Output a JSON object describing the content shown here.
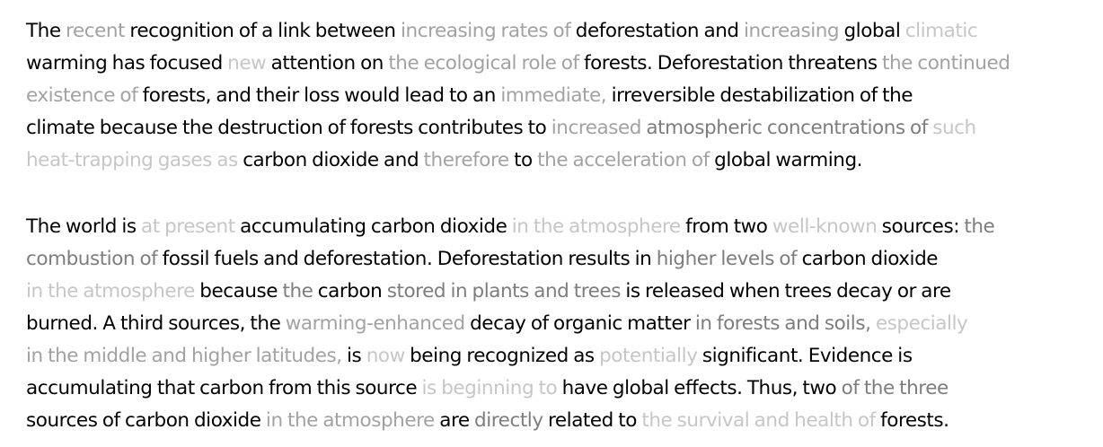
{
  "document": {
    "paragraphs": [
      {
        "lines": [
          [
            {
              "t": "The ",
              "w": 0
            },
            {
              "t": "recent ",
              "w": 2
            },
            {
              "t": "recognition of a link between ",
              "w": 0
            },
            {
              "t": "increasing rates of ",
              "w": 2
            },
            {
              "t": "deforestation and ",
              "w": 0
            },
            {
              "t": "increasing ",
              "w": 2
            },
            {
              "t": "global ",
              "w": 0
            },
            {
              "t": "climatic",
              "w": 3
            }
          ],
          [
            {
              "t": "warming has focused ",
              "w": 0
            },
            {
              "t": "new ",
              "w": 3
            },
            {
              "t": "attention on ",
              "w": 0
            },
            {
              "t": "the ecological role of ",
              "w": 2
            },
            {
              "t": "forests. Deforestation threatens ",
              "w": 0
            },
            {
              "t": "the continued",
              "w": 2
            }
          ],
          [
            {
              "t": "existence of ",
              "w": 2
            },
            {
              "t": "forests, and their loss would lead to an ",
              "w": 0
            },
            {
              "t": "immediate, ",
              "w": 2
            },
            {
              "t": "irreversible destabilization of the",
              "w": 0
            }
          ],
          [
            {
              "t": "climate because the destruction of forests contributes to ",
              "w": 0
            },
            {
              "t": "increased ",
              "w": 2
            },
            {
              "t": "atmospheric concentrations of ",
              "w": 1
            },
            {
              "t": "such",
              "w": 3
            }
          ],
          [
            {
              "t": "heat-trapping gases as ",
              "w": 3
            },
            {
              "t": "carbon dioxide and ",
              "w": 0
            },
            {
              "t": "therefore ",
              "w": 2
            },
            {
              "t": "to ",
              "w": 0
            },
            {
              "t": "the acceleration of ",
              "w": 2
            },
            {
              "t": "global warming.",
              "w": 0
            }
          ]
        ]
      },
      {
        "lines": [
          [
            {
              "t": "The world is ",
              "w": 0
            },
            {
              "t": "at present ",
              "w": 3
            },
            {
              "t": "accumulating carbon dioxide ",
              "w": 0
            },
            {
              "t": "in the atmosphere ",
              "w": 3
            },
            {
              "t": "from two ",
              "w": 0
            },
            {
              "t": "well-known ",
              "w": 3
            },
            {
              "t": "sources: ",
              "w": 0
            },
            {
              "t": "the",
              "w": 1
            }
          ],
          [
            {
              "t": "combustion of ",
              "w": 1
            },
            {
              "t": "fossil fuels and deforestation. Deforestation results in ",
              "w": 0
            },
            {
              "t": "higher levels of ",
              "w": 1
            },
            {
              "t": "carbon dioxide",
              "w": 0
            }
          ],
          [
            {
              "t": "in the atmosphere ",
              "w": 3
            },
            {
              "t": "because ",
              "w": 0
            },
            {
              "t": "the ",
              "w": 1
            },
            {
              "t": "carbon ",
              "w": 0
            },
            {
              "t": "stored in plants and trees ",
              "w": 1
            },
            {
              "t": "is released when trees decay or are",
              "w": 0
            }
          ],
          [
            {
              "t": "burned. A third sources, the ",
              "w": 0
            },
            {
              "t": "warming-enhanced ",
              "w": 2
            },
            {
              "t": "decay of organic matter ",
              "w": 0
            },
            {
              "t": "in forests and soils, ",
              "w": 1
            },
            {
              "t": "especially",
              "w": 3
            }
          ],
          [
            {
              "t": "in the middle and higher latitudes, ",
              "w": 2
            },
            {
              "t": "is ",
              "w": 0
            },
            {
              "t": "now ",
              "w": 3
            },
            {
              "t": "being recognized as ",
              "w": 0
            },
            {
              "t": "potentially ",
              "w": 3
            },
            {
              "t": "significant. Evidence is",
              "w": 0
            }
          ],
          [
            {
              "t": "accumulating that carbon from this source ",
              "w": 0
            },
            {
              "t": "is beginning to ",
              "w": 3
            },
            {
              "t": "have global effects. Thus, two ",
              "w": 0
            },
            {
              "t": "of the three",
              "w": 1
            }
          ],
          [
            {
              "t": "sources of carbon dioxide ",
              "w": 0
            },
            {
              "t": "in the atmosphere ",
              "w": 2
            },
            {
              "t": "are ",
              "w": 0
            },
            {
              "t": "directly ",
              "w": 1
            },
            {
              "t": "related to ",
              "w": 0
            },
            {
              "t": "the survival and health of ",
              "w": 3
            },
            {
              "t": "forests.",
              "w": 0
            }
          ]
        ]
      }
    ]
  }
}
